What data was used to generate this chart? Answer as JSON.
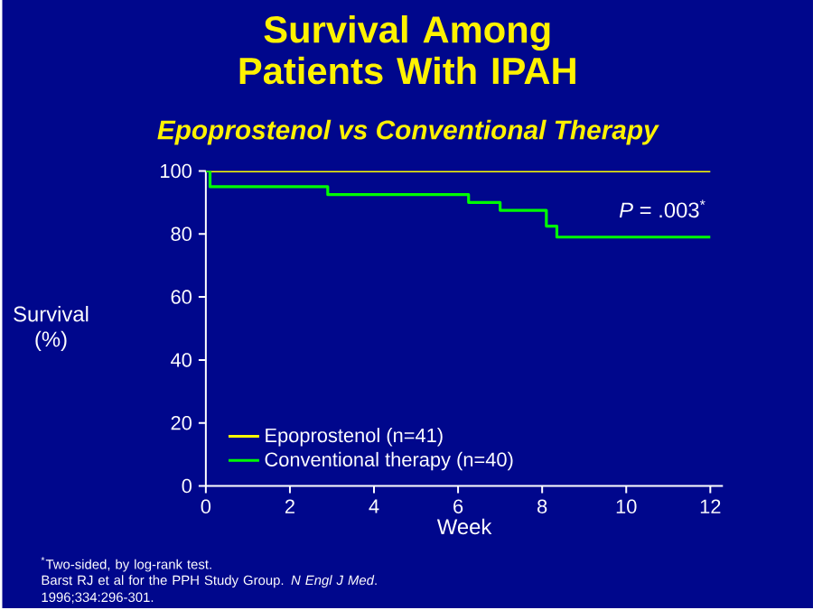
{
  "chart_data": {
    "type": "step",
    "title": "Survival Among Patients With IPAH",
    "subtitle": "Epoprostenol vs Conventional Therapy",
    "xlabel": "Week",
    "ylabel": "Survival (%)",
    "series": [
      {
        "name": "Epoprostenol (n=41)",
        "color": "#ffff00",
        "x": [
          0,
          12
        ],
        "values": [
          100,
          100
        ]
      },
      {
        "name": "Conventional therapy (n=40)",
        "color": "#00ff00",
        "x": [
          0,
          0.1,
          2.9,
          6.25,
          7.0,
          8.1,
          8.35,
          12
        ],
        "values": [
          100,
          95,
          92.5,
          90,
          87.5,
          82.5,
          79,
          79
        ]
      }
    ],
    "xlim": [
      0,
      12.3
    ],
    "xticks": [
      0,
      2,
      4,
      6,
      8,
      10,
      12
    ],
    "ylim": [
      0,
      100
    ],
    "yticks": [
      0,
      20,
      40,
      60,
      80,
      100
    ],
    "legend": "bottom left",
    "grid": false,
    "marker": "none",
    "line_style": "solid",
    "annotations": [
      "*P* = .003$^{*}$",
      "$^{*}$Two-sided, by log-rank test.",
      "Barst RJ et al for the PPH Study Group. *N Engl J Med*. 1996;334:296-301."
    ]
  }
}
